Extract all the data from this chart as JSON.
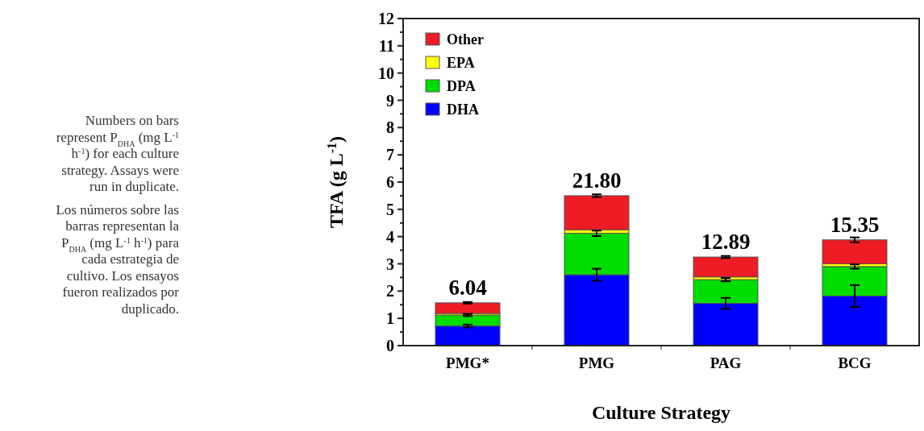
{
  "chart_data": {
    "type": "bar",
    "stacked": true,
    "categories": [
      "PMG*",
      "PMG",
      "PAG",
      "BCG"
    ],
    "series": [
      {
        "name": "DHA",
        "color": "#0000ff",
        "values": [
          0.72,
          2.6,
          1.55,
          1.82
        ],
        "errors": [
          0.05,
          0.22,
          0.2,
          0.4
        ]
      },
      {
        "name": "DPA",
        "color": "#00dd00",
        "values": [
          0.4,
          1.52,
          0.87,
          1.08
        ],
        "errors": [
          0.04,
          0.1,
          0.06,
          0.08
        ]
      },
      {
        "name": "EPA",
        "color": "#ffff00",
        "values": [
          0.06,
          0.13,
          0.1,
          0.1
        ]
      },
      {
        "name": "Other",
        "color": "#ee1c25",
        "values": [
          0.39,
          1.25,
          0.73,
          0.88
        ],
        "errors": [
          0.03,
          0.05,
          0.04,
          0.09
        ]
      }
    ],
    "ylim": [
      0,
      12
    ],
    "yticks": [
      0,
      {
        "value": 0.5,
        "label": null
      },
      1,
      {
        "value": 1.5,
        "label": null
      },
      2,
      {
        "value": 2.5,
        "label": null
      },
      3,
      {
        "value": 3.5,
        "label": null
      },
      4,
      {
        "value": 4.5,
        "label": null
      },
      5,
      {
        "value": 5.5,
        "label": null
      },
      6,
      {
        "value": 6.5,
        "label": null
      },
      7,
      {
        "value": 7.5,
        "label": null
      },
      8,
      {
        "value": 8.5,
        "label": null
      },
      9,
      {
        "value": 9.5,
        "label": null
      },
      10,
      {
        "value": 10.5,
        "label": null
      },
      11,
      {
        "value": 11.5,
        "label": null
      },
      12
    ],
    "xlabel": "Culture Strategy",
    "ylabel": "TFA (g L$^{-1}$)",
    "legend": "top left",
    "grid": false,
    "annotations": [
      {
        "text": "6.04",
        "x": "PMG*",
        "y": 1.57
      },
      {
        "text": "21.80",
        "x": "PMG",
        "y": 5.5
      },
      {
        "text": "12.89",
        "x": "PAG",
        "y": 3.25
      },
      {
        "text": "15.35",
        "x": "BCG",
        "y": 3.88
      },
      "Numbers on bars represent P$_{DHA}$ (mg L$^{-1}$ h$^{-1}$) for each culture strategy. Assays were run in duplicate.",
      "Los números sobre las barras representan la P$_{DHA}$ (mg L$^{-1}$ h$^{-1}$) para cada estrategia de cultivo. Los ensayos fueron realizados por duplicado."
    ]
  }
}
